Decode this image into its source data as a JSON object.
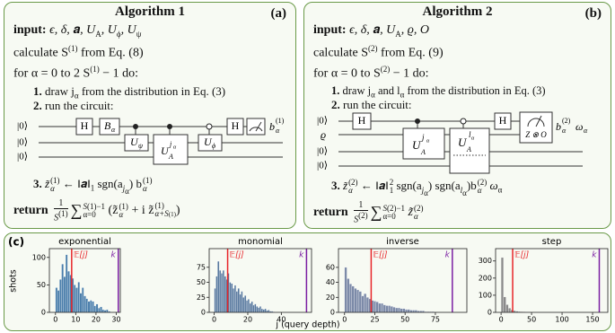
{
  "panel_a": {
    "label": "(a)",
    "title": "Algorithm 1",
    "input": [
      "input:",
      "ϵ, δ, ",
      "𝒂",
      ", U",
      "A",
      ", U",
      "ϕ",
      ", U",
      "ψ"
    ],
    "calculate": [
      "calculate S",
      "(1)",
      " from Eq. (8)"
    ],
    "loop": [
      "for α = 0 to 2 S",
      "(1)",
      " − 1 do:"
    ],
    "step_1": [
      "1.",
      "draw j",
      "α",
      " from the distribution in Eq. (3)"
    ],
    "step_2": [
      "2.",
      "run the circuit:"
    ],
    "circuit": {
      "inputs": [
        "|0⟩",
        "|0⟩",
        "|0⟩"
      ],
      "gates": [
        [
          "H"
        ],
        [
          "B",
          "α"
        ],
        [
          "U",
          "ψ"
        ],
        [
          "U",
          "A",
          "j",
          "α"
        ],
        [
          "U",
          "ϕ"
        ],
        [
          "H"
        ]
      ],
      "output": [
        "b",
        "α",
        "(1)"
      ]
    },
    "step_3": [
      "3.",
      "z̃",
      "α",
      "(1)",
      " ← ‖𝒂‖",
      "1",
      " sgn(a",
      "j",
      "α",
      ") b",
      "α",
      "(1)"
    ],
    "return": [
      "return",
      "1",
      "S",
      "(1)",
      "∑",
      "α=0",
      "S",
      "(1)",
      "−1",
      "(z̃",
      "α",
      "(1)",
      " + i z̃",
      "α+S",
      "(1)",
      "(1)",
      ")"
    ]
  },
  "panel_b": {
    "label": "(b)",
    "title": "Algorithm 2",
    "input": [
      "input:",
      "ϵ, δ, ",
      "𝒂",
      ", U",
      "A",
      ", ϱ, O"
    ],
    "calculate": [
      "calculate S",
      "(2)",
      " from Eq. (9)"
    ],
    "loop": [
      "for α = 0 to S",
      "(2)",
      " − 1 do:"
    ],
    "step_1": [
      "1.",
      "draw j",
      "α",
      " and l",
      "α",
      " from the distribution in Eq. (3)"
    ],
    "step_2": [
      "2.",
      "run the circuit:"
    ],
    "circuit": {
      "inputs": [
        "|0⟩",
        "ϱ",
        "|0⟩",
        "|0⟩"
      ],
      "gates": [
        [
          "H"
        ],
        [
          "U",
          "A",
          "j",
          "α"
        ],
        [
          "U",
          "A",
          "l",
          "α"
        ],
        [
          "H"
        ],
        [
          "Z ⊗ O"
        ]
      ],
      "output": [
        "b",
        "α",
        "(2)",
        "ω",
        "α"
      ]
    },
    "step_3": [
      "3.",
      "z̃",
      "α",
      "(2)",
      " ← ‖𝒂‖",
      "1",
      "2",
      " sgn(a",
      "j",
      "α",
      ") sgn(a",
      "l",
      "α",
      ")b",
      "α",
      "(2)",
      " ω",
      "α"
    ],
    "return": [
      "return",
      "1",
      "S",
      "(2)",
      "∑",
      "α=0",
      "S",
      "(2)",
      "−1",
      "z̃",
      "α",
      "(2)"
    ]
  },
  "panel_c": {
    "label": "(c)",
    "ylabel": "shots",
    "xlabel": "j (query depth)"
  },
  "chart_data": [
    {
      "type": "histogram",
      "title": "exponential",
      "color": "#4a7eab",
      "bins": [
        0,
        1,
        2,
        3,
        4,
        5,
        6,
        7,
        8,
        9,
        10,
        11,
        12,
        13,
        14,
        15,
        16,
        17,
        18,
        19,
        20,
        21,
        22,
        23,
        24,
        25,
        26,
        27
      ],
      "values": [
        45,
        40,
        60,
        88,
        65,
        105,
        75,
        68,
        62,
        50,
        45,
        55,
        35,
        45,
        30,
        25,
        20,
        22,
        20,
        12,
        15,
        8,
        10,
        5,
        4,
        5,
        2
      ],
      "xlim": [
        -3,
        32
      ],
      "xticks": [
        0,
        10,
        20,
        30
      ],
      "ylim": [
        0,
        116
      ],
      "yticks": [
        0,
        50,
        100
      ],
      "markers": [
        {
          "label": "𝔼[j]",
          "value": 8,
          "color": "#e8262a"
        },
        {
          "label": "k",
          "value": 31,
          "color": "#7b1fa2"
        }
      ]
    },
    {
      "type": "histogram",
      "title": "monomial",
      "color": "#57789e",
      "bins": [
        0,
        1,
        2,
        3,
        4,
        5,
        6,
        7,
        8,
        9,
        10,
        11,
        12,
        13,
        14,
        15,
        16,
        17,
        18,
        19,
        20,
        21,
        22,
        23,
        24,
        25,
        26,
        27,
        28,
        29,
        30,
        31,
        32,
        33,
        34,
        35,
        36
      ],
      "values": [
        40,
        60,
        85,
        70,
        65,
        70,
        60,
        55,
        65,
        50,
        48,
        40,
        45,
        35,
        40,
        30,
        35,
        25,
        28,
        20,
        22,
        15,
        18,
        12,
        14,
        10,
        8,
        10,
        6,
        5,
        6,
        3,
        4,
        2,
        2,
        1
      ],
      "xlim": [
        -3,
        58
      ],
      "xticks": [
        0,
        20,
        40
      ],
      "ylim": [
        0,
        106
      ],
      "yticks": [
        0,
        25,
        50,
        75
      ],
      "markers": [
        {
          "label": "𝔼[j]",
          "value": 8,
          "color": "#e8262a"
        },
        {
          "label": "k",
          "value": 55,
          "color": "#7b1fa2"
        }
      ]
    },
    {
      "type": "histogram",
      "title": "inverse",
      "color": "#7c8aa8",
      "bins": [
        0,
        2,
        4,
        6,
        8,
        10,
        12,
        14,
        16,
        18,
        20,
        22,
        24,
        26,
        28,
        30,
        32,
        34,
        36,
        38,
        40,
        42,
        44,
        46,
        48,
        50,
        52,
        54,
        56,
        58,
        60,
        62,
        64,
        66,
        68,
        70,
        72,
        74
      ],
      "values": [
        60,
        45,
        38,
        35,
        32,
        30,
        28,
        22,
        25,
        20,
        18,
        16,
        15,
        14,
        12,
        12,
        10,
        9,
        9,
        8,
        7,
        6,
        6,
        5,
        5,
        4,
        4,
        3,
        3,
        3,
        2,
        2,
        2,
        1,
        1,
        1,
        1
      ],
      "xlim": [
        -5,
        101
      ],
      "xticks": [
        0,
        25,
        50,
        75
      ],
      "ylim": [
        0,
        85
      ],
      "yticks": [
        0,
        20,
        40,
        60
      ],
      "markers": [
        {
          "label": "𝔼[j]",
          "value": 22,
          "color": "#e8262a"
        },
        {
          "label": "k",
          "value": 89,
          "color": "#7b1fa2"
        }
      ]
    },
    {
      "type": "histogram",
      "title": "step",
      "color": "#8a8a8a",
      "bins": [
        0,
        4,
        8,
        12,
        16,
        20,
        24,
        28,
        32,
        36,
        40,
        44,
        48,
        52
      ],
      "values": [
        320,
        90,
        45,
        25,
        15,
        10,
        7,
        5,
        4,
        3,
        2,
        2,
        1
      ],
      "xlim": [
        -9,
        175
      ],
      "xticks": [
        0,
        50,
        100,
        150
      ],
      "ylim": [
        0,
        372
      ],
      "yticks": [
        0,
        100,
        200,
        300
      ],
      "markers": [
        {
          "label": "𝔼[j]",
          "value": 19,
          "color": "#e8262a"
        },
        {
          "label": "k",
          "value": 161,
          "color": "#7b1fa2"
        }
      ]
    }
  ]
}
